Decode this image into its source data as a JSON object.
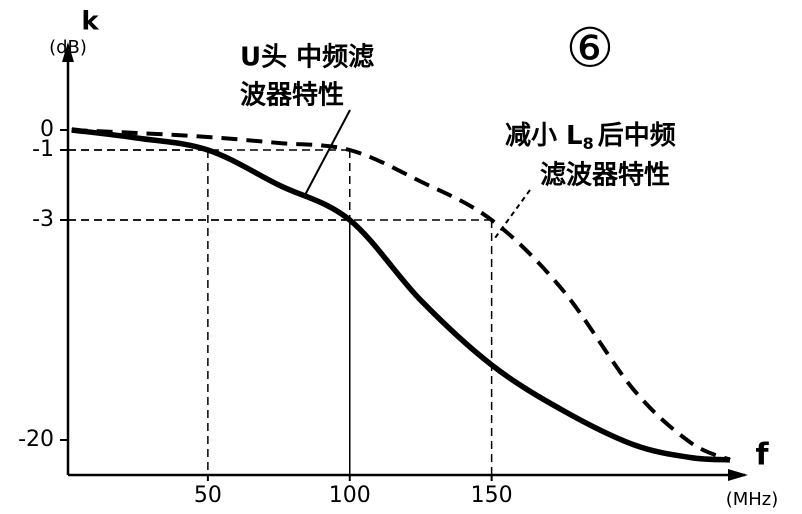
{
  "chart_data": {
    "type": "line",
    "y_label": "k",
    "y_unit": "(dB)",
    "x_label": "f",
    "x_unit": "(MHz)",
    "badge": "⑥",
    "x": [
      2,
      25,
      50,
      75,
      100,
      125,
      150,
      175,
      200,
      220,
      234
    ],
    "series": [
      {
        "color": "#000000",
        "style": "solid",
        "values": [
          0,
          -0.4,
          -1,
          -2,
          -3,
          -9.2,
          -14.2,
          -17.7,
          -20.4,
          -21.5,
          -21.7
        ]
      },
      {
        "color": "#000000",
        "style": "dashed",
        "values": [
          0,
          -0.15,
          -0.35,
          -0.65,
          -1,
          -1.9,
          -3,
          -8.4,
          -16.1,
          -20.2,
          -21.7
        ]
      }
    ],
    "annotations": [
      {
        "line1": "U头 中频滤",
        "line2": "波器特性"
      },
      {
        "line1": "减小 L",
        "sub": "8",
        "line1_end": "后中频",
        "line2": "滤波器特性"
      }
    ],
    "guides": [
      {
        "x": 50,
        "y": -1
      },
      {
        "x": 100,
        "y": -1
      },
      {
        "x": 100,
        "y": -3
      },
      {
        "x": 150,
        "y": -3
      }
    ],
    "xlim": [
      0,
      240
    ],
    "ylim": [
      -23,
      4.5
    ],
    "xticks": [
      50,
      100,
      150
    ],
    "yticks": [
      0,
      -1,
      -3,
      -20
    ]
  }
}
